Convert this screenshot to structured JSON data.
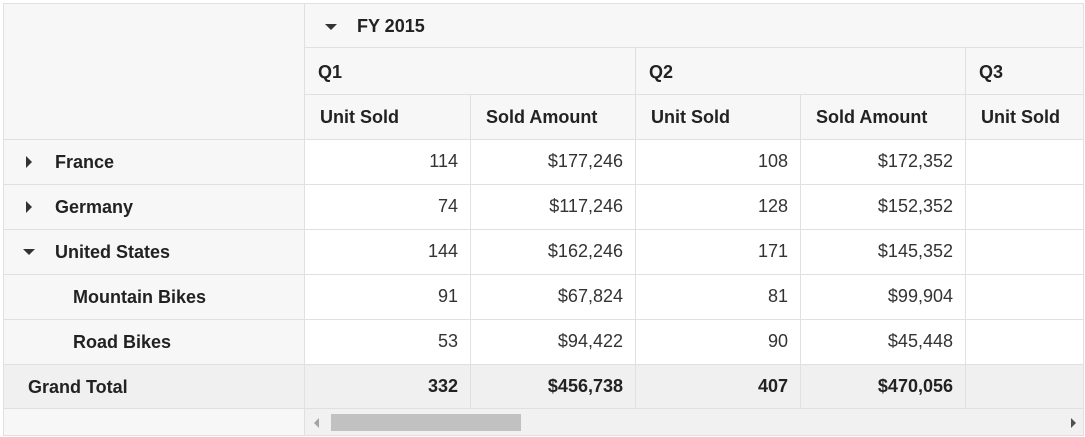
{
  "header": {
    "fiscal_year": "FY 2015",
    "quarters": [
      "Q1",
      "Q2",
      "Q3"
    ],
    "columns": [
      "Unit Sold",
      "Sold Amount",
      "Unit Sold",
      "Sold Amount",
      "Unit Sold"
    ]
  },
  "rows": [
    {
      "label": "France",
      "expander": "collapsed",
      "values": [
        "114",
        "$177,246",
        "108",
        "$172,352",
        ""
      ]
    },
    {
      "label": "Germany",
      "expander": "collapsed",
      "values": [
        "74",
        "$117,246",
        "128",
        "$152,352",
        ""
      ]
    },
    {
      "label": "United States",
      "expander": "expanded",
      "values": [
        "144",
        "$162,246",
        "171",
        "$145,352",
        ""
      ]
    },
    {
      "label": "Mountain Bikes",
      "expander": "none",
      "values": [
        "91",
        "$67,824",
        "81",
        "$99,904",
        ""
      ]
    },
    {
      "label": "Road Bikes",
      "expander": "none",
      "values": [
        "53",
        "$94,422",
        "90",
        "$45,448",
        ""
      ]
    }
  ],
  "grand_total": {
    "label": "Grand Total",
    "values": [
      "332",
      "$456,738",
      "407",
      "$470,056",
      ""
    ]
  },
  "icons": {
    "collapse": "caret-down-icon",
    "expand": "caret-right-icon",
    "scroll_left": "scroll-left-arrow-icon",
    "scroll_right": "scroll-right-arrow-icon"
  },
  "colors": {
    "header_bg": "#f7f7f8",
    "total_bg": "#f0f0f0",
    "border": "#e0e0e0"
  }
}
